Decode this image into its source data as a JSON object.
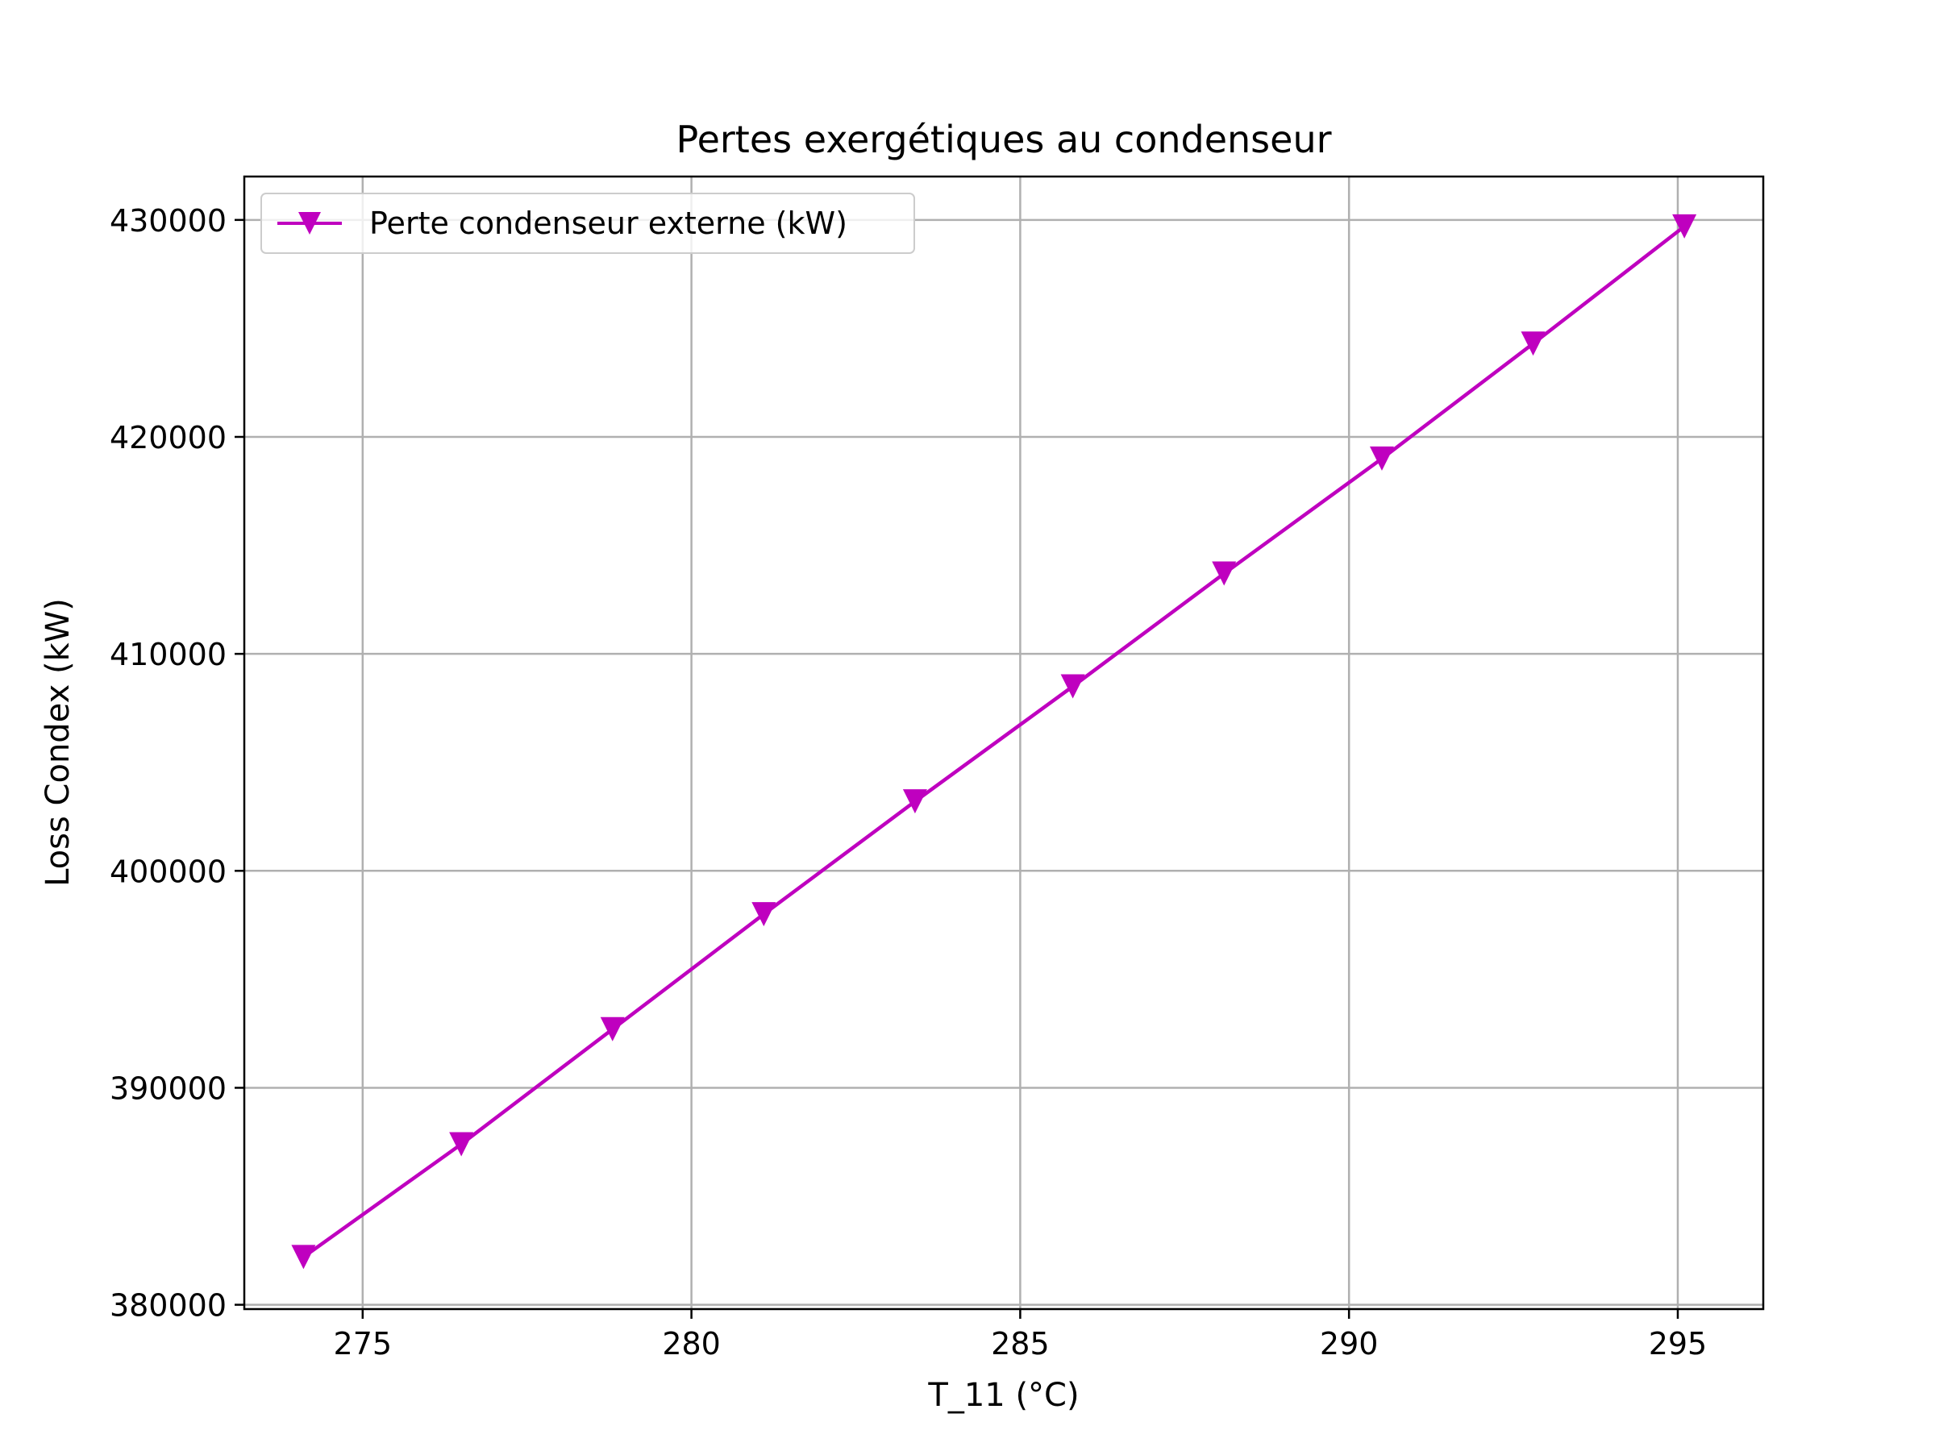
{
  "chart_data": {
    "type": "line",
    "title": "Pertes exergétiques au condenseur",
    "xlabel": "T_11 (°C)",
    "ylabel": "Loss Condex (kW)",
    "xlim": [
      273.2,
      296.3
    ],
    "ylim": [
      379800,
      432000
    ],
    "xticks": [
      275,
      280,
      285,
      290,
      295
    ],
    "yticks": [
      380000,
      390000,
      400000,
      410000,
      420000,
      430000
    ],
    "grid": true,
    "legend_position": "top-left",
    "series": [
      {
        "name": "Perte condenseur externe (kW)",
        "color": "#bf00bf",
        "marker": "triangle-down",
        "x": [
          274.1,
          276.5,
          278.8,
          281.1,
          283.4,
          285.8,
          288.1,
          290.5,
          292.8,
          295.1
        ],
        "y": [
          382200,
          387400,
          392700,
          398000,
          403200,
          408500,
          413700,
          419000,
          424300,
          429700
        ]
      }
    ]
  }
}
